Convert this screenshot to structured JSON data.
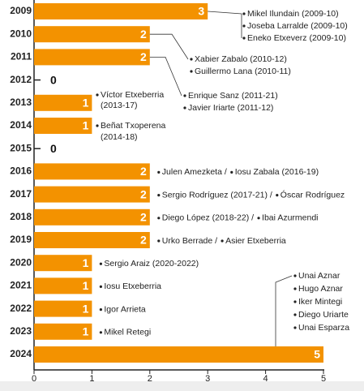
{
  "chart_data": {
    "type": "bar",
    "orientation": "horizontal",
    "color": "#f39200",
    "categories": [
      "2009",
      "2010",
      "2011",
      "2012",
      "2013",
      "2014",
      "2015",
      "2016",
      "2017",
      "2018",
      "2019",
      "2020",
      "2021",
      "2022",
      "2023",
      "2024"
    ],
    "values": [
      3,
      2,
      2,
      0,
      1,
      1,
      0,
      2,
      2,
      2,
      2,
      1,
      1,
      1,
      1,
      5
    ],
    "xlim": [
      0,
      5
    ],
    "xticks": [
      0,
      1,
      2,
      3,
      4,
      5
    ],
    "names": [
      [
        "Mikel Ilundain (2009-10)",
        "Joseba Larralde (2009-10)",
        "Eneko Etxeverz (2009-10)"
      ],
      [
        "Xabier Zabalo (2010-12)",
        "Guillermo Lana (2010-11)"
      ],
      [
        "Enrique Sanz (2011-21)",
        "Javier Iriarte (2011-12)"
      ],
      [],
      [
        "Víctor Etxeberria",
        "(2013-17)"
      ],
      [
        "Beñat Txoperena",
        "(2014-18)"
      ],
      [],
      [
        "Julen Amezketa /",
        "Iosu Zabala (2016-19)"
      ],
      [
        "Sergio Rodríguez (2017-21) /",
        "Óscar Rodríguez"
      ],
      [
        "Diego López (2018-22) /",
        "Ibai Azurmendi"
      ],
      [
        "Urko Berrade /",
        "Asier Etxeberria"
      ],
      [
        "Sergio Araiz (2020-2022)"
      ],
      [
        "Iosu Etxeberria"
      ],
      [
        "Igor Arrieta"
      ],
      [
        "Mikel Retegi"
      ],
      [
        "Unai Aznar",
        "Hugo Aznar",
        "Iker Mintegi",
        "Diego Uriarte",
        "Unai Esparza"
      ]
    ]
  }
}
